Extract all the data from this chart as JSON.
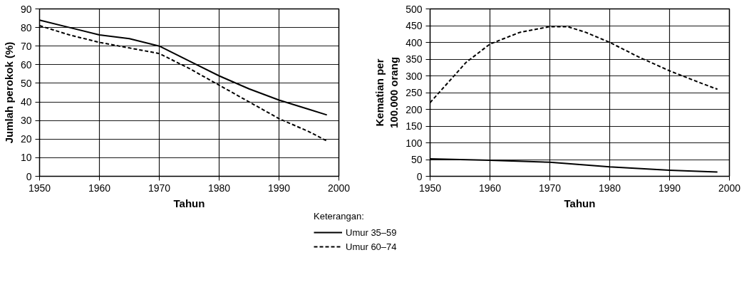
{
  "chart_data": [
    {
      "type": "line",
      "xlabel": "Tahun",
      "ylabel": "Jumlah perokok (%)",
      "xlim": [
        1950,
        2000
      ],
      "ylim": [
        0,
        90
      ],
      "xticks": [
        1950,
        1960,
        1970,
        1980,
        1990,
        2000
      ],
      "yticks": [
        0,
        10,
        20,
        30,
        40,
        50,
        60,
        70,
        80,
        90
      ],
      "grid": true,
      "series": [
        {
          "color": "#000000",
          "line_style": "solid",
          "x": [
            1950,
            1955,
            1960,
            1965,
            1970,
            1975,
            1980,
            1985,
            1990,
            1995,
            1998
          ],
          "values": [
            84,
            80,
            76,
            74,
            70,
            62,
            54,
            47,
            41,
            36,
            33
          ]
        },
        {
          "color": "#000000",
          "line_style": "dashed",
          "x": [
            1950,
            1955,
            1960,
            1965,
            1970,
            1975,
            1980,
            1985,
            1990,
            1995,
            1998
          ],
          "values": [
            81,
            76,
            72,
            69,
            66,
            58,
            49,
            40,
            31,
            24,
            19
          ]
        }
      ]
    },
    {
      "type": "line",
      "xlabel": "Tahun",
      "ylabel": "Kematian per\n100.000 orang",
      "xlim": [
        1950,
        2000
      ],
      "ylim": [
        0,
        500
      ],
      "xticks": [
        1950,
        1960,
        1970,
        1980,
        1990,
        2000
      ],
      "yticks": [
        0,
        50,
        100,
        150,
        200,
        250,
        300,
        350,
        400,
        450,
        500
      ],
      "grid": true,
      "legend": "bottom left",
      "legend_title": "Keterangan:",
      "series": [
        {
          "name": "Umur 35–59",
          "color": "#000000",
          "line_style": "solid",
          "x": [
            1950,
            1960,
            1970,
            1980,
            1990,
            1998
          ],
          "values": [
            52,
            48,
            42,
            28,
            18,
            13
          ]
        },
        {
          "name": "Umur 60–74",
          "color": "#000000",
          "line_style": "dashed",
          "x": [
            1950,
            1953,
            1956,
            1960,
            1965,
            1970,
            1973,
            1976,
            1980,
            1985,
            1990,
            1995,
            1998
          ],
          "values": [
            220,
            280,
            340,
            395,
            430,
            447,
            447,
            430,
            400,
            355,
            315,
            280,
            260
          ]
        }
      ]
    }
  ]
}
